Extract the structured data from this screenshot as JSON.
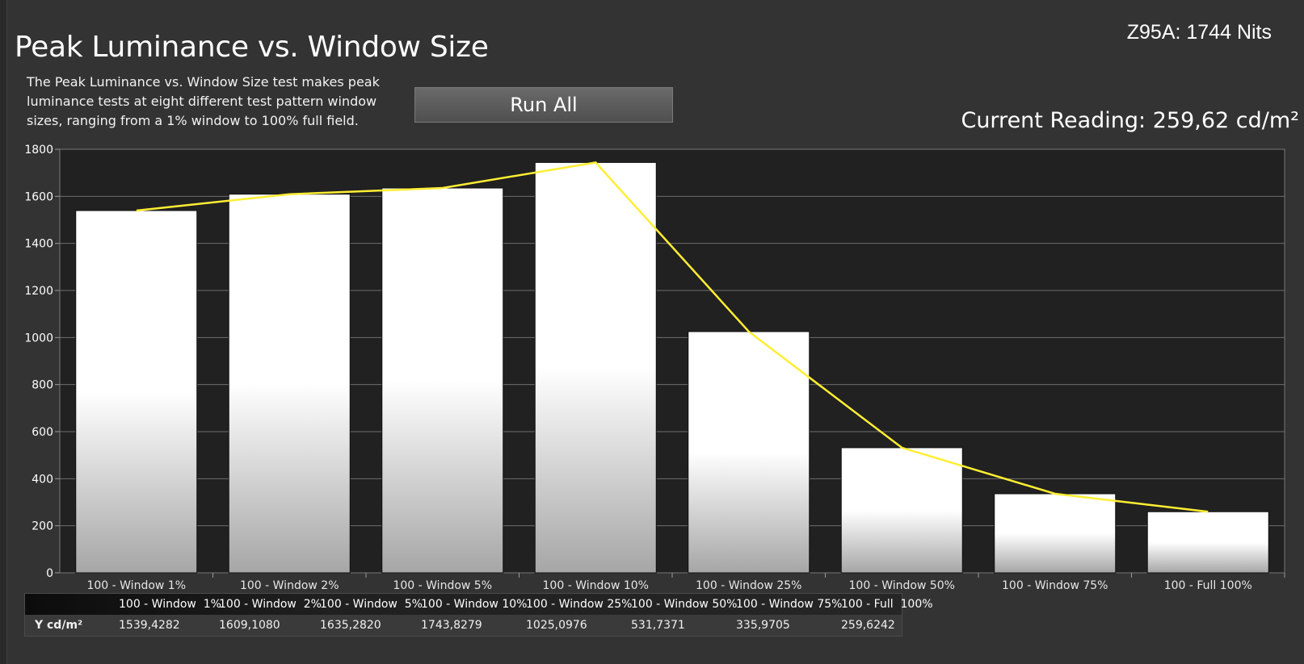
{
  "header": {
    "title": "Peak Luminance vs. Window Size",
    "description": "The Peak Luminance vs. Window Size test makes peak luminance tests at eight different test pattern window sizes, ranging from a 1% window to 100% full field.",
    "run_all_label": "Run All",
    "model_label": "Z95A: 1744 Nits",
    "current_reading": "Current Reading: 259,62 cd/m²"
  },
  "colors": {
    "background": "#333333",
    "plot_background": "#212121",
    "line": "#ffee33",
    "bar_top": "#ffffff",
    "bar_bottom": "#a6a6a6"
  },
  "chart_data": {
    "type": "bar",
    "categories": [
      "100 - Window  1%",
      "100 - Window  2%",
      "100 - Window  5%",
      "100 - Window 10%",
      "100 - Window 25%",
      "100 - Window 50%",
      "100 - Window 75%",
      "100 - Full  100%"
    ],
    "values": [
      1539.4282,
      1609.108,
      1635.282,
      1743.8279,
      1025.0976,
      531.7371,
      335.9705,
      259.6242
    ],
    "line_overlay": [
      1539.4282,
      1609.108,
      1635.282,
      1743.8279,
      1025.0976,
      531.7371,
      335.9705,
      259.6242
    ],
    "ylim": [
      0,
      1800
    ],
    "yticks": [
      "0",
      "200",
      "400",
      "600",
      "800",
      "1000",
      "1200",
      "1400",
      "1600",
      "1800"
    ],
    "grid": true,
    "title": "",
    "xlabel": "",
    "ylabel": ""
  },
  "table": {
    "headers": [
      "100 - Window  1%",
      "100 - Window  2%",
      "100 - Window  5%",
      "100 - Window 10%",
      "100 - Window 25%",
      "100 - Window 50%",
      "100 - Window 75%",
      "100 - Full  100%"
    ],
    "row_label": "Y cd/m²",
    "values": [
      "1539,4282",
      "1609,1080",
      "1635,2820",
      "1743,8279",
      "1025,0976",
      "531,7371",
      "335,9705",
      "259,6242"
    ]
  }
}
